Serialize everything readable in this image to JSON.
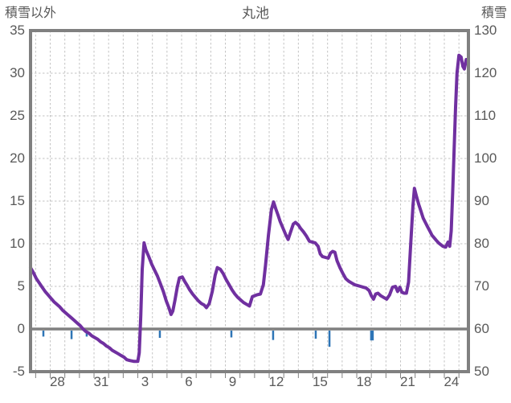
{
  "header": {
    "left_axis_title": "積雪以外",
    "chart_title": "丸池",
    "right_axis_title": "積雪"
  },
  "colors": {
    "line": "#7030A0",
    "event_tick": "#2E75B6",
    "frame": "#808080",
    "gridline": "#c3c3c3",
    "text": "#595959",
    "background": "#ffffff"
  },
  "chart_data": {
    "type": "line",
    "title": "丸池",
    "legend": "none",
    "grid": "dashed daily vertical + dashed horizontal every 5 units; solid thick line at left-axis 0",
    "left_axis": {
      "label": "積雪以外",
      "min": -5,
      "max": 35,
      "tick_step": 5,
      "ticks": [
        "35",
        "30",
        "25",
        "20",
        "15",
        "10",
        "5",
        "0",
        "-5"
      ]
    },
    "right_axis": {
      "label": "積雪",
      "min": 50,
      "max": 130,
      "tick_step": 10,
      "ticks": [
        "130",
        "120",
        "110",
        "100",
        "90",
        "80",
        "70",
        "60",
        "50"
      ]
    },
    "x_axis": {
      "unit": "day-of-month",
      "range_days": [
        0,
        30
      ],
      "gridline_offset_days": 0.35,
      "gridline_step_days": 1,
      "tick_labels": [
        "28",
        "31",
        "3",
        "6",
        "9",
        "12",
        "15",
        "18",
        "21",
        "24"
      ],
      "tick_label_days": [
        1.84,
        4.84,
        7.84,
        10.84,
        13.84,
        16.84,
        19.84,
        22.84,
        25.84,
        28.84
      ]
    },
    "series": [
      {
        "name": "丸池",
        "axis": "left",
        "color": "#7030A0",
        "stroke_width": 4,
        "points": [
          [
            0,
            7.2
          ],
          [
            0.2,
            6.6
          ],
          [
            0.4,
            5.9
          ],
          [
            0.6,
            5.4
          ],
          [
            0.8,
            4.9
          ],
          [
            1.0,
            4.4
          ],
          [
            1.2,
            4.0
          ],
          [
            1.4,
            3.6
          ],
          [
            1.6,
            3.2
          ],
          [
            1.8,
            2.9
          ],
          [
            2.0,
            2.6
          ],
          [
            2.2,
            2.2
          ],
          [
            2.4,
            1.9
          ],
          [
            2.6,
            1.6
          ],
          [
            2.8,
            1.3
          ],
          [
            3.0,
            1.0
          ],
          [
            3.2,
            0.7
          ],
          [
            3.4,
            0.4
          ],
          [
            3.6,
            0.0
          ],
          [
            3.8,
            -0.3
          ],
          [
            4.0,
            -0.5
          ],
          [
            4.2,
            -0.8
          ],
          [
            4.4,
            -1.0
          ],
          [
            4.6,
            -1.2
          ],
          [
            4.8,
            -1.5
          ],
          [
            5.0,
            -1.7
          ],
          [
            5.2,
            -2.0
          ],
          [
            5.4,
            -2.2
          ],
          [
            5.6,
            -2.5
          ],
          [
            5.8,
            -2.7
          ],
          [
            6.0,
            -2.9
          ],
          [
            6.2,
            -3.1
          ],
          [
            6.4,
            -3.3
          ],
          [
            6.6,
            -3.6
          ],
          [
            6.8,
            -3.7
          ],
          [
            7.1,
            -3.8
          ],
          [
            7.35,
            -3.8
          ],
          [
            7.45,
            -2.8
          ],
          [
            7.55,
            1.5
          ],
          [
            7.65,
            7.0
          ],
          [
            7.78,
            10.1
          ],
          [
            7.9,
            9.3
          ],
          [
            8.1,
            8.5
          ],
          [
            8.3,
            7.6
          ],
          [
            8.5,
            6.9
          ],
          [
            8.7,
            6.2
          ],
          [
            8.9,
            5.3
          ],
          [
            9.1,
            4.4
          ],
          [
            9.3,
            3.3
          ],
          [
            9.5,
            2.4
          ],
          [
            9.63,
            1.7
          ],
          [
            9.75,
            2.1
          ],
          [
            9.9,
            3.4
          ],
          [
            10.05,
            4.9
          ],
          [
            10.2,
            6.0
          ],
          [
            10.4,
            6.1
          ],
          [
            10.55,
            5.6
          ],
          [
            10.7,
            5.2
          ],
          [
            10.9,
            4.6
          ],
          [
            11.1,
            4.1
          ],
          [
            11.3,
            3.7
          ],
          [
            11.5,
            3.3
          ],
          [
            11.7,
            3.0
          ],
          [
            11.9,
            2.8
          ],
          [
            12.05,
            2.5
          ],
          [
            12.25,
            3.0
          ],
          [
            12.45,
            4.4
          ],
          [
            12.65,
            6.3
          ],
          [
            12.8,
            7.2
          ],
          [
            13.0,
            7.0
          ],
          [
            13.2,
            6.5
          ],
          [
            13.4,
            5.8
          ],
          [
            13.6,
            5.2
          ],
          [
            13.8,
            4.6
          ],
          [
            14.0,
            4.1
          ],
          [
            14.2,
            3.7
          ],
          [
            14.4,
            3.4
          ],
          [
            14.6,
            3.1
          ],
          [
            14.8,
            2.9
          ],
          [
            15.0,
            2.7
          ],
          [
            15.2,
            3.8
          ],
          [
            15.5,
            4.0
          ],
          [
            15.75,
            4.1
          ],
          [
            15.95,
            5.2
          ],
          [
            16.1,
            7.5
          ],
          [
            16.3,
            11.0
          ],
          [
            16.5,
            14.0
          ],
          [
            16.65,
            14.9
          ],
          [
            16.8,
            14.1
          ],
          [
            16.95,
            13.4
          ],
          [
            17.1,
            12.6
          ],
          [
            17.3,
            11.8
          ],
          [
            17.5,
            11.0
          ],
          [
            17.65,
            10.5
          ],
          [
            17.8,
            11.3
          ],
          [
            18.0,
            12.3
          ],
          [
            18.15,
            12.5
          ],
          [
            18.35,
            12.2
          ],
          [
            18.5,
            11.8
          ],
          [
            18.7,
            11.4
          ],
          [
            18.9,
            10.9
          ],
          [
            19.1,
            10.3
          ],
          [
            19.3,
            10.2
          ],
          [
            19.5,
            10.1
          ],
          [
            19.7,
            9.7
          ],
          [
            19.85,
            8.8
          ],
          [
            20.0,
            8.5
          ],
          [
            20.2,
            8.4
          ],
          [
            20.4,
            8.3
          ],
          [
            20.55,
            8.9
          ],
          [
            20.7,
            9.1
          ],
          [
            20.85,
            9.0
          ],
          [
            21.0,
            8.0
          ],
          [
            21.2,
            7.2
          ],
          [
            21.4,
            6.5
          ],
          [
            21.6,
            5.9
          ],
          [
            21.8,
            5.6
          ],
          [
            22.0,
            5.4
          ],
          [
            22.2,
            5.2
          ],
          [
            22.4,
            5.1
          ],
          [
            22.6,
            5.0
          ],
          [
            22.8,
            4.9
          ],
          [
            23.0,
            4.8
          ],
          [
            23.2,
            4.5
          ],
          [
            23.35,
            3.9
          ],
          [
            23.5,
            3.5
          ],
          [
            23.65,
            4.1
          ],
          [
            23.8,
            4.2
          ],
          [
            24.0,
            3.9
          ],
          [
            24.2,
            3.7
          ],
          [
            24.4,
            3.5
          ],
          [
            24.6,
            4.0
          ],
          [
            24.8,
            4.9
          ],
          [
            25.0,
            5.0
          ],
          [
            25.15,
            4.4
          ],
          [
            25.3,
            4.9
          ],
          [
            25.45,
            4.3
          ],
          [
            25.6,
            4.2
          ],
          [
            25.75,
            4.2
          ],
          [
            25.9,
            5.5
          ],
          [
            26.05,
            10.0
          ],
          [
            26.2,
            14.5
          ],
          [
            26.3,
            16.5
          ],
          [
            26.45,
            15.5
          ],
          [
            26.6,
            14.6
          ],
          [
            26.75,
            13.8
          ],
          [
            26.9,
            13.0
          ],
          [
            27.05,
            12.5
          ],
          [
            27.2,
            12.0
          ],
          [
            27.35,
            11.5
          ],
          [
            27.5,
            11.0
          ],
          [
            27.65,
            10.7
          ],
          [
            27.8,
            10.4
          ],
          [
            27.95,
            10.1
          ],
          [
            28.1,
            9.9
          ],
          [
            28.25,
            9.7
          ],
          [
            28.45,
            9.6
          ],
          [
            28.6,
            10.2
          ],
          [
            28.72,
            9.7
          ],
          [
            28.82,
            11.5
          ],
          [
            28.92,
            16.0
          ],
          [
            29.02,
            21.0
          ],
          [
            29.12,
            26.0
          ],
          [
            29.22,
            30.0
          ],
          [
            29.35,
            32.1
          ],
          [
            29.5,
            31.9
          ],
          [
            29.62,
            30.8
          ],
          [
            29.72,
            30.5
          ],
          [
            29.85,
            31.6
          ],
          [
            30,
            31.2
          ]
        ]
      }
    ],
    "event_ticks": {
      "description": "short blue marks hanging below the zero line",
      "color": "#2E75B6",
      "items": [
        {
          "day": 0.88,
          "depth_units": 0.7,
          "width": 2.5
        },
        {
          "day": 2.81,
          "depth_units": 1.0,
          "width": 2.5
        },
        {
          "day": 3.85,
          "depth_units": 0.7,
          "width": 2.5
        },
        {
          "day": 8.86,
          "depth_units": 0.85,
          "width": 2.5
        },
        {
          "day": 13.76,
          "depth_units": 0.8,
          "width": 2.5
        },
        {
          "day": 16.62,
          "depth_units": 1.1,
          "width": 2.5
        },
        {
          "day": 19.54,
          "depth_units": 0.95,
          "width": 2.5
        },
        {
          "day": 20.48,
          "depth_units": 1.9,
          "width": 2.5
        },
        {
          "day": 23.39,
          "depth_units": 1.15,
          "width": 4.5
        }
      ]
    }
  }
}
